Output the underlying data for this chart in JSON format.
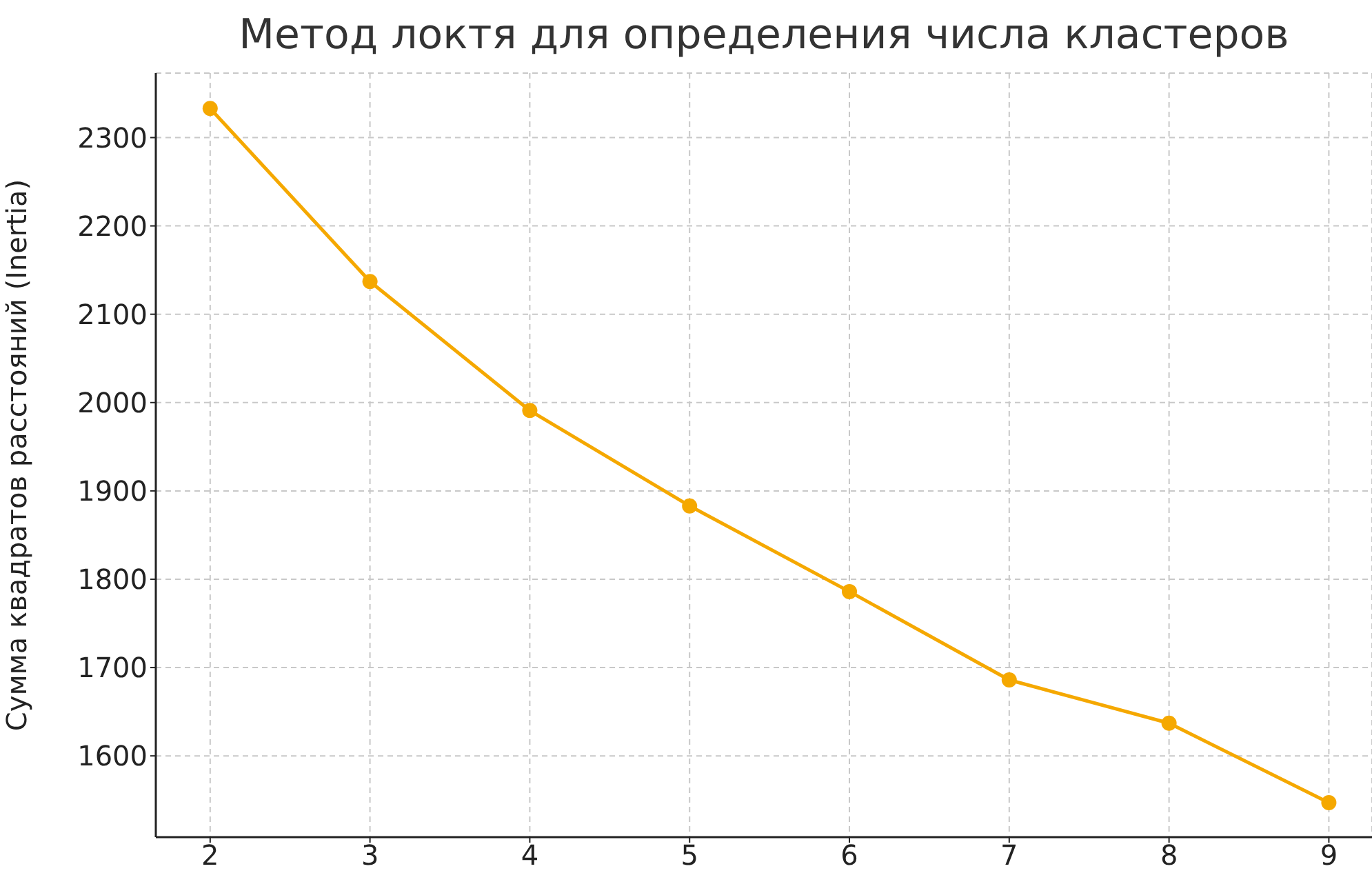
{
  "chart_data": {
    "type": "line",
    "title": "Метод локтя для определения числа кластеров",
    "ylabel": "Сумма квадратов расстояний (Inertia)",
    "x": [
      2,
      3,
      4,
      5,
      6,
      7,
      8,
      9
    ],
    "series": [
      {
        "color": "#f5a800",
        "values": [
          2333,
          2137,
          1991,
          1883,
          1786,
          1686,
          1637,
          1547
        ]
      }
    ],
    "xlim": [
      1.66,
      9.27
    ],
    "xticks": [
      2,
      3,
      4,
      5,
      6,
      7,
      8,
      9
    ],
    "ylim": [
      1508,
      2373
    ],
    "yticks": [
      1600,
      1700,
      1800,
      1900,
      2000,
      2100,
      2200,
      2300
    ],
    "grid": true,
    "marker": "circle",
    "line_style": "solid"
  }
}
